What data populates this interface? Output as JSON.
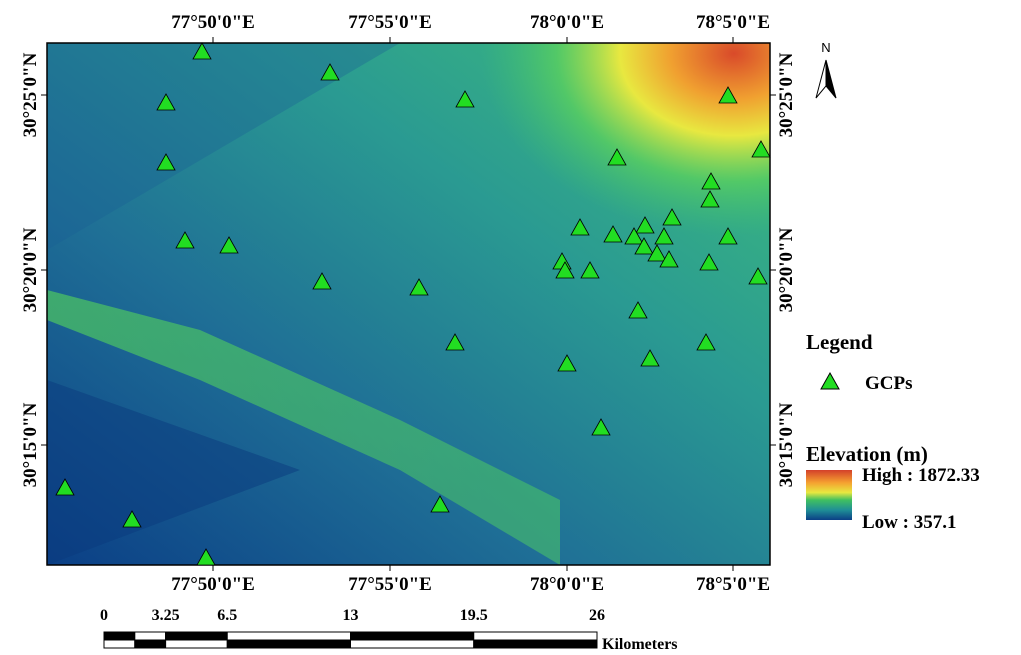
{
  "map": {
    "longitude_labels": [
      "77°50'0\"E",
      "77°55'0\"E",
      "78°0'0\"E",
      "78°5'0\"E"
    ],
    "latitude_labels": [
      "30°25'0\"N",
      "30°20'0\"N",
      "30°15'0\"N"
    ],
    "north": "N",
    "legend": {
      "title": "Legend",
      "gcp_label": "GCPs",
      "elevation_title": "Elevation (m)",
      "high": "High : 1872.33",
      "low": "Low : 357.1"
    },
    "scale_bar": {
      "labels": [
        0,
        3.25,
        6.5,
        13,
        19.5,
        26
      ],
      "unit": "Kilometers"
    }
  }
}
